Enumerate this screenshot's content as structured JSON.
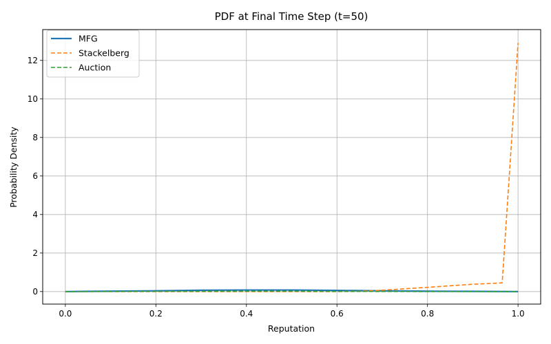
{
  "chart_data": {
    "type": "line",
    "title": "PDF at Final Time Step (t=50)",
    "xlabel": "Reputation",
    "ylabel": "Probability Density",
    "xlim": [
      -0.05,
      1.05
    ],
    "ylim": [
      -0.65,
      13.6
    ],
    "xticks": [
      0.0,
      0.2,
      0.4,
      0.6,
      0.8,
      1.0
    ],
    "xtick_labels": [
      "0.0",
      "0.2",
      "0.4",
      "0.6",
      "0.8",
      "1.0"
    ],
    "yticks": [
      0,
      2,
      4,
      6,
      8,
      10,
      12
    ],
    "ytick_labels": [
      "0",
      "2",
      "4",
      "6",
      "8",
      "10",
      "12"
    ],
    "grid": true,
    "legend_position": "top-left",
    "series": [
      {
        "name": "MFG",
        "color": "#1f77b4",
        "style": "solid",
        "x": [
          0.0,
          0.1,
          0.2,
          0.3,
          0.4,
          0.5,
          0.6,
          0.7,
          0.8,
          0.9,
          1.0
        ],
        "y": [
          0.0,
          0.02,
          0.04,
          0.07,
          0.08,
          0.08,
          0.06,
          0.04,
          0.02,
          0.01,
          0.0
        ]
      },
      {
        "name": "Stackelberg",
        "color": "#ff7f0e",
        "style": "dashed",
        "x": [
          0.0,
          0.1,
          0.2,
          0.3,
          0.4,
          0.5,
          0.6,
          0.65,
          0.7,
          0.8,
          0.9,
          0.965,
          1.0
        ],
        "y": [
          0.0,
          0.0,
          0.0,
          0.0,
          0.0,
          0.0,
          0.0,
          0.02,
          0.07,
          0.22,
          0.38,
          0.45,
          12.9
        ]
      },
      {
        "name": "Auction",
        "color": "#2ca02c",
        "style": "dashed",
        "x": [
          0.0,
          0.2,
          0.4,
          0.5,
          0.6,
          0.8,
          1.0
        ],
        "y": [
          0.0,
          0.01,
          0.02,
          0.02,
          0.01,
          0.0,
          0.0
        ]
      }
    ]
  }
}
